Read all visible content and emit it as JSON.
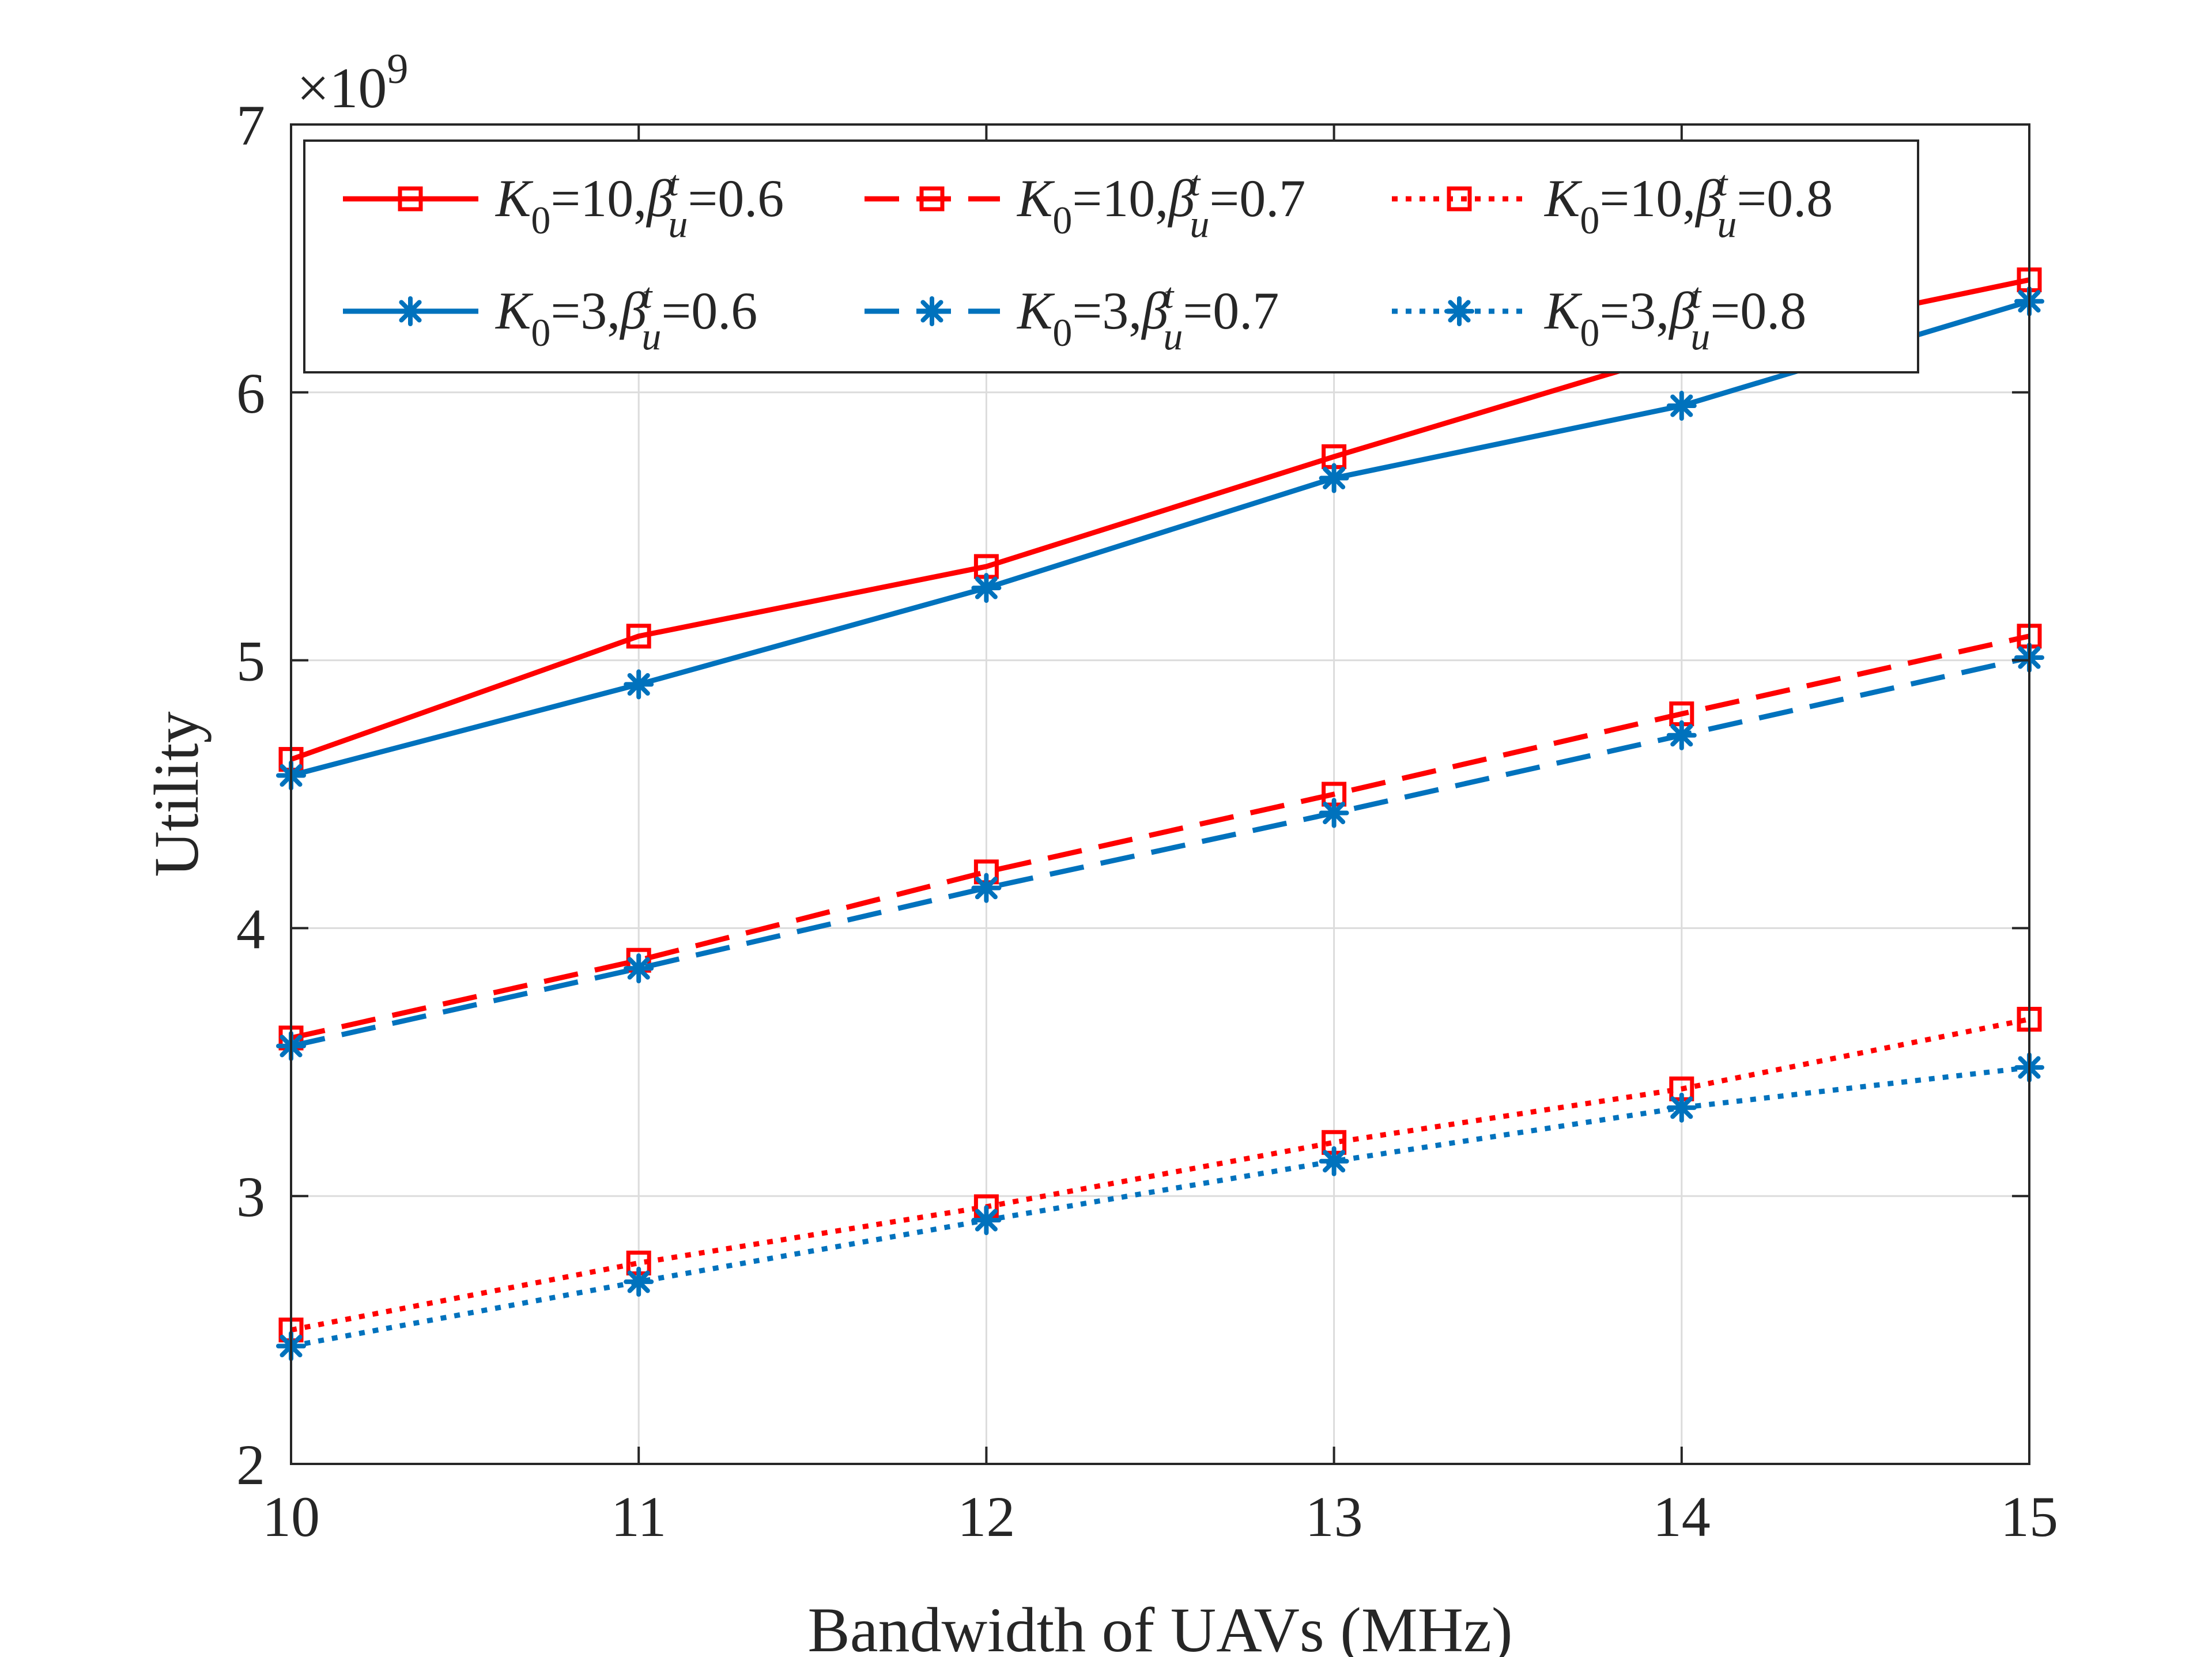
{
  "chart_data": {
    "type": "line",
    "title": "",
    "xlabel": "Bandwidth of UAVs (MHz)",
    "ylabel": "Utility",
    "x": [
      10,
      11,
      12,
      13,
      14,
      15
    ],
    "xlim": [
      10,
      15
    ],
    "ylim": [
      2,
      7
    ],
    "xticks": [
      "10",
      "11",
      "12",
      "13",
      "14",
      "15"
    ],
    "yticks": [
      "2",
      "3",
      "4",
      "5",
      "6",
      "7"
    ],
    "y_multiplier": "×10",
    "y_multiplier_exponent": "9",
    "grid": true,
    "legend_position": "top",
    "colors": {
      "red": "#ff0000",
      "blue": "#0072bd"
    },
    "series": [
      {
        "name": "K0=10,βtu=0.6",
        "k": "10",
        "beta": "0.6",
        "color": "#ff0000",
        "dash": "solid",
        "marker": "square",
        "values": [
          4.63,
          5.09,
          5.35,
          5.76,
          6.15,
          6.42
        ]
      },
      {
        "name": "K0=10,βtu=0.7",
        "k": "10",
        "beta": "0.7",
        "color": "#ff0000",
        "dash": "dashed",
        "marker": "square",
        "values": [
          3.59,
          3.88,
          4.21,
          4.5,
          4.8,
          5.09
        ]
      },
      {
        "name": "K0=10,βtu=0.8",
        "k": "10",
        "beta": "0.8",
        "color": "#ff0000",
        "dash": "dotted",
        "marker": "square",
        "values": [
          2.5,
          2.75,
          2.96,
          3.2,
          3.4,
          3.66
        ]
      },
      {
        "name": "K0=3,βtu=0.6",
        "k": "3",
        "beta": "0.6",
        "color": "#0072bd",
        "dash": "solid",
        "marker": "asterisk",
        "values": [
          4.57,
          4.91,
          5.27,
          5.68,
          5.95,
          6.34
        ]
      },
      {
        "name": "K0=3,βtu=0.7",
        "k": "3",
        "beta": "0.7",
        "color": "#0072bd",
        "dash": "dashed",
        "marker": "asterisk",
        "values": [
          3.56,
          3.85,
          4.15,
          4.43,
          4.72,
          5.01
        ]
      },
      {
        "name": "K0=3,βtu=0.8",
        "k": "3",
        "beta": "0.8",
        "color": "#0072bd",
        "dash": "dotted",
        "marker": "asterisk",
        "values": [
          2.44,
          2.68,
          2.91,
          3.13,
          3.33,
          3.48
        ]
      }
    ],
    "legend": {
      "k_symbol": "K",
      "k_sub": "0",
      "beta_symbol": "β",
      "beta_sup": "t",
      "beta_sub": "u",
      "entries": [
        {
          "k": "10",
          "beta": "0.6"
        },
        {
          "k": "10",
          "beta": "0.7"
        },
        {
          "k": "10",
          "beta": "0.8"
        },
        {
          "k": "3",
          "beta": "0.6"
        },
        {
          "k": "3",
          "beta": "0.7"
        },
        {
          "k": "3",
          "beta": "0.8"
        }
      ]
    }
  }
}
